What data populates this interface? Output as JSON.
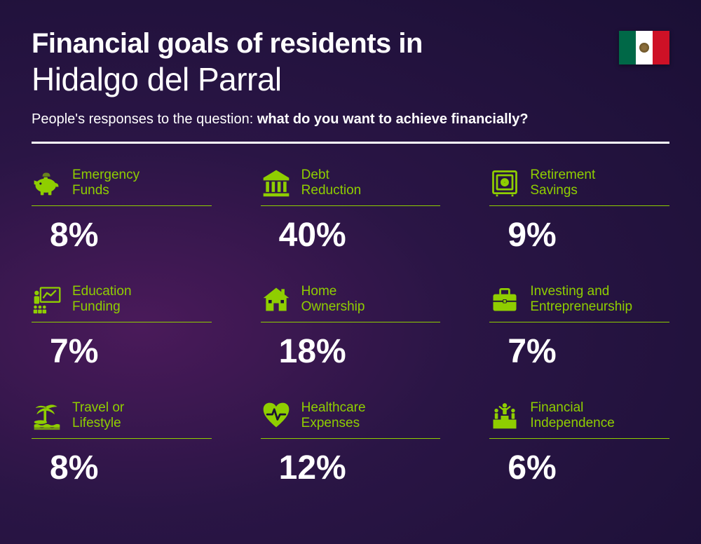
{
  "header": {
    "title_line1": "Financial goals of residents in",
    "title_line2": "Hidalgo del Parral",
    "subtitle_prefix": "People's responses to the question: ",
    "subtitle_bold": "what do you want to achieve financially?"
  },
  "flag": {
    "name": "mexico-flag",
    "colors": {
      "green": "#006847",
      "white": "#ffffff",
      "red": "#ce1126"
    }
  },
  "styling": {
    "accent_color": "#8fce00",
    "text_color": "#ffffff",
    "title_line1_fontsize": 40,
    "title_line1_weight": 800,
    "title_line2_fontsize": 46,
    "title_line2_weight": 400,
    "subtitle_fontsize": 20,
    "label_fontsize": 19,
    "value_fontsize": 48,
    "value_weight": 800,
    "divider_color": "#ffffff",
    "divider_height": 3,
    "grid_columns": 3,
    "column_gap": 70,
    "row_gap": 42,
    "background_gradient": [
      "#4a1a5a",
      "#2a1545",
      "#1a0f35"
    ]
  },
  "items": [
    {
      "icon": "piggy-bank-icon",
      "label": "Emergency\nFunds",
      "value": "8%"
    },
    {
      "icon": "bank-icon",
      "label": "Debt\nReduction",
      "value": "40%"
    },
    {
      "icon": "safe-icon",
      "label": "Retirement\nSavings",
      "value": "9%"
    },
    {
      "icon": "presentation-icon",
      "label": "Education\nFunding",
      "value": "7%"
    },
    {
      "icon": "house-icon",
      "label": "Home\nOwnership",
      "value": "18%"
    },
    {
      "icon": "briefcase-icon",
      "label": "Investing and\nEntrepreneurship",
      "value": "7%"
    },
    {
      "icon": "palm-tree-icon",
      "label": "Travel or\nLifestyle",
      "value": "8%"
    },
    {
      "icon": "heart-pulse-icon",
      "label": "Healthcare\nExpenses",
      "value": "12%"
    },
    {
      "icon": "podium-icon",
      "label": "Financial\nIndependence",
      "value": "6%"
    }
  ]
}
